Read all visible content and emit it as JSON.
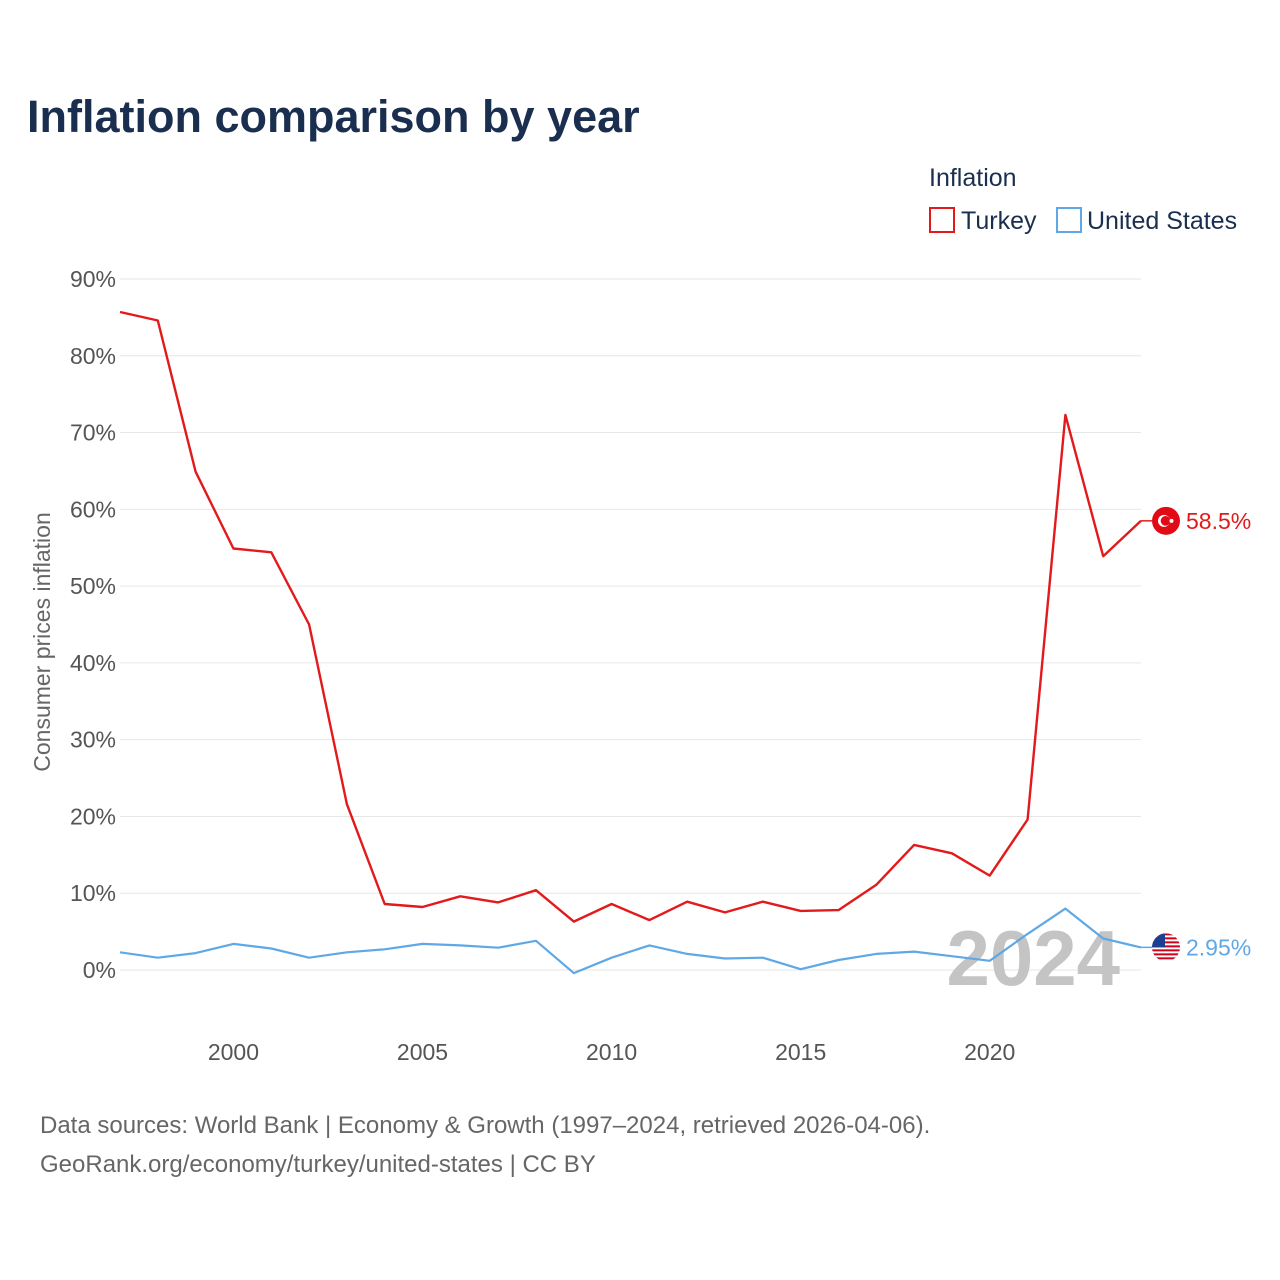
{
  "chart_data": {
    "type": "line",
    "title": "Inflation comparison by year",
    "legend_title": "Inflation",
    "legend_position": "top-right",
    "ylabel": "Consumer prices inflation",
    "xlabel": "",
    "ylim": [
      -5,
      90
    ],
    "xlim": [
      1997,
      2024
    ],
    "y_ticks": [
      0,
      10,
      20,
      30,
      40,
      50,
      60,
      70,
      80,
      90
    ],
    "y_tick_labels": [
      "0%",
      "10%",
      "20%",
      "30%",
      "40%",
      "50%",
      "60%",
      "70%",
      "80%",
      "90%"
    ],
    "x_ticks": [
      2000,
      2005,
      2010,
      2015,
      2020
    ],
    "x_tick_labels": [
      "2000",
      "2005",
      "2010",
      "2015",
      "2020"
    ],
    "grid": true,
    "x": [
      1997,
      1998,
      1999,
      2000,
      2001,
      2002,
      2003,
      2004,
      2005,
      2006,
      2007,
      2008,
      2009,
      2010,
      2011,
      2012,
      2013,
      2014,
      2015,
      2016,
      2017,
      2018,
      2019,
      2020,
      2021,
      2022,
      2023,
      2024
    ],
    "series": [
      {
        "name": "Turkey",
        "color": "#e31a1c",
        "end_label": "58.5%",
        "flag": "turkey-flag",
        "values": [
          85.7,
          84.6,
          64.9,
          54.9,
          54.4,
          45.0,
          21.6,
          8.6,
          8.2,
          9.6,
          8.8,
          10.4,
          6.3,
          8.6,
          6.5,
          8.9,
          7.5,
          8.9,
          7.7,
          7.8,
          11.1,
          16.3,
          15.2,
          12.3,
          19.6,
          72.3,
          53.9,
          58.5
        ]
      },
      {
        "name": "United States",
        "color": "#5fa8e6",
        "end_label": "2.95%",
        "flag": "united-states-flag",
        "values": [
          2.3,
          1.6,
          2.2,
          3.4,
          2.8,
          1.6,
          2.3,
          2.7,
          3.4,
          3.2,
          2.9,
          3.8,
          -0.4,
          1.6,
          3.2,
          2.1,
          1.5,
          1.6,
          0.1,
          1.3,
          2.1,
          2.4,
          1.8,
          1.2,
          4.7,
          8.0,
          4.1,
          2.95
        ]
      }
    ],
    "watermark": "2024"
  },
  "footer": {
    "line1": "Data sources: World Bank | Economy & Growth (1997–2024, retrieved 2026-04-06).",
    "line2": "GeoRank.org/economy/turkey/united-states | CC BY"
  }
}
